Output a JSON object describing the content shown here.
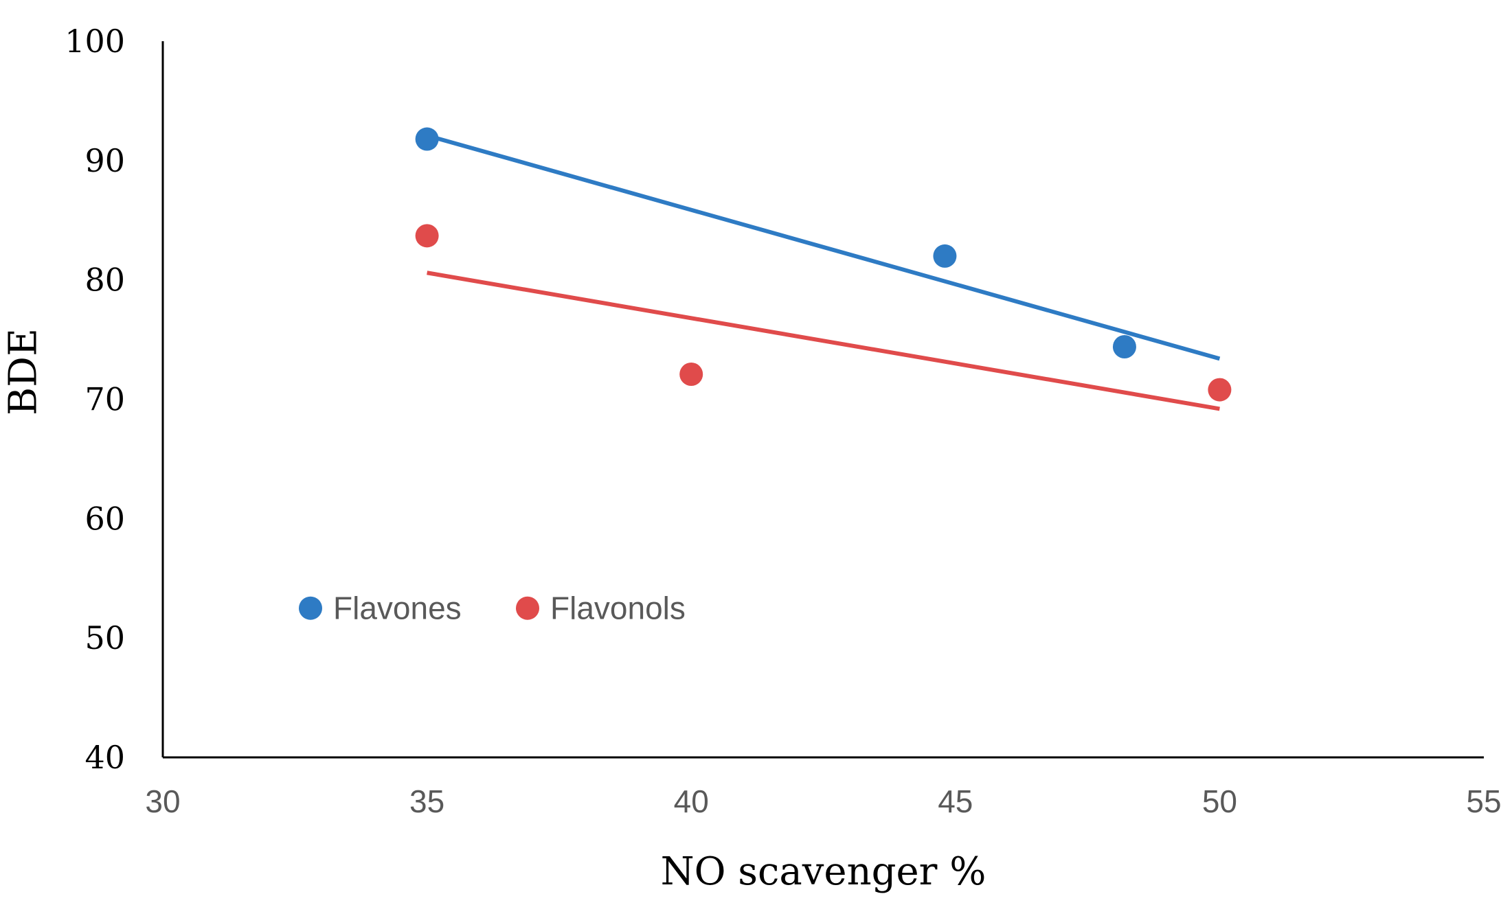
{
  "chart_data": {
    "type": "scatter",
    "title": "",
    "xlabel": "NO scavenger %",
    "ylabel": "BDE",
    "xlim": [
      30,
      55
    ],
    "ylim": [
      40,
      100
    ],
    "xticks": [
      "30",
      "35",
      "40",
      "45",
      "50",
      "55"
    ],
    "yticks": [
      "40",
      "50",
      "60",
      "70",
      "80",
      "90",
      "100"
    ],
    "grid": false,
    "legend_position": "center-left",
    "series": [
      {
        "name": "Flavones",
        "color": "#2E7BC4",
        "points": [
          [
            35.0,
            91.8
          ],
          [
            44.8,
            82.0
          ],
          [
            48.2,
            74.4
          ]
        ],
        "trendline": {
          "x": [
            35.0,
            50.0
          ],
          "y": [
            92.1,
            73.4
          ]
        }
      },
      {
        "name": "Flavonols",
        "color": "#E04B4B",
        "points": [
          [
            35.0,
            83.7
          ],
          [
            40.0,
            72.1
          ],
          [
            50.0,
            70.8
          ]
        ],
        "trendline": {
          "x": [
            35.0,
            50.0
          ],
          "y": [
            80.6,
            69.2
          ]
        }
      }
    ]
  }
}
